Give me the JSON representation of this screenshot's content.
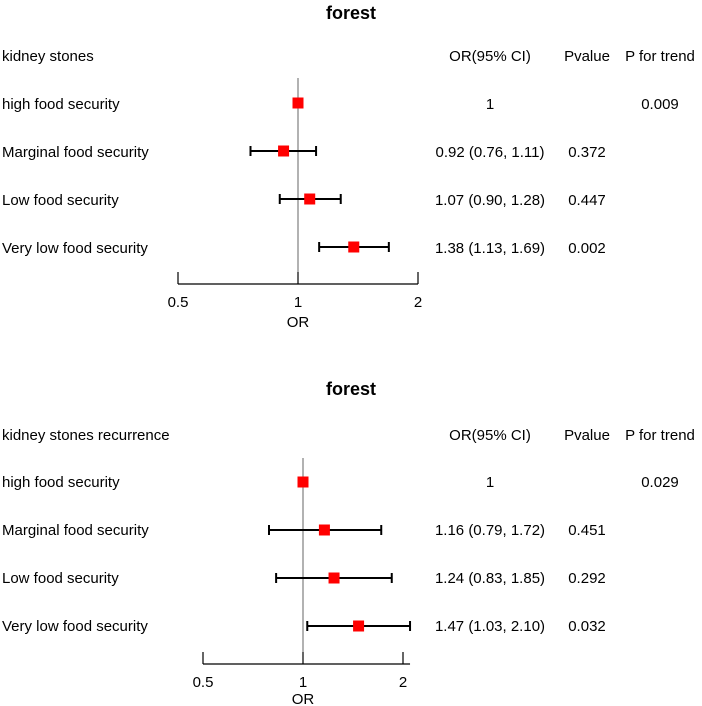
{
  "chart_data": [
    {
      "type": "forest",
      "title": "forest",
      "outcome_label": "kidney stones",
      "columns": {
        "or_ci": "OR(95% CI)",
        "pvalue": "Pvalue",
        "p_trend": "P for trend"
      },
      "rows": [
        {
          "label": "high food security",
          "or": 1.0,
          "lower": null,
          "upper": null,
          "or_ci": "1",
          "pvalue": "",
          "p_trend": "0.009"
        },
        {
          "label": "Marginal food security",
          "or": 0.92,
          "lower": 0.76,
          "upper": 1.11,
          "or_ci": "0.92 (0.76, 1.11)",
          "pvalue": "0.372",
          "p_trend": ""
        },
        {
          "label": "Low food security",
          "or": 1.07,
          "lower": 0.9,
          "upper": 1.28,
          "or_ci": "1.07 (0.90, 1.28)",
          "pvalue": "0.447",
          "p_trend": ""
        },
        {
          "label": "Very low food security",
          "or": 1.38,
          "lower": 1.13,
          "upper": 1.69,
          "or_ci": "1.38 (1.13, 1.69)",
          "pvalue": "0.002",
          "p_trend": ""
        }
      ],
      "xaxis": {
        "scale": "log",
        "ticks": [
          0.5,
          1,
          2
        ],
        "tick_labels": [
          "0.5",
          "1",
          "2"
        ],
        "xlim": [
          0.5,
          2
        ],
        "label": "OR"
      },
      "reference_line": 1,
      "point_color": "#ff0000"
    },
    {
      "type": "forest",
      "title": "forest",
      "outcome_label": "kidney stones recurrence",
      "columns": {
        "or_ci": "OR(95% CI)",
        "pvalue": "Pvalue",
        "p_trend": "P for trend"
      },
      "rows": [
        {
          "label": "high food security",
          "or": 1.0,
          "lower": null,
          "upper": null,
          "or_ci": "1",
          "pvalue": "",
          "p_trend": "0.029"
        },
        {
          "label": "Marginal food security",
          "or": 1.16,
          "lower": 0.79,
          "upper": 1.72,
          "or_ci": "1.16 (0.79, 1.72)",
          "pvalue": "0.451",
          "p_trend": ""
        },
        {
          "label": "Low food security",
          "or": 1.24,
          "lower": 0.83,
          "upper": 1.85,
          "or_ci": "1.24 (0.83, 1.85)",
          "pvalue": "0.292",
          "p_trend": ""
        },
        {
          "label": "Very low food security",
          "or": 1.47,
          "lower": 1.03,
          "upper": 2.1,
          "or_ci": "1.47 (1.03, 2.10)",
          "pvalue": "0.032",
          "p_trend": ""
        }
      ],
      "xaxis": {
        "scale": "log",
        "ticks": [
          0.5,
          1,
          2
        ],
        "tick_labels": [
          "0.5",
          "1",
          "2"
        ],
        "xlim": [
          0.5,
          2.1
        ],
        "label": "OR"
      },
      "reference_line": 1,
      "point_color": "#ff0000"
    }
  ]
}
